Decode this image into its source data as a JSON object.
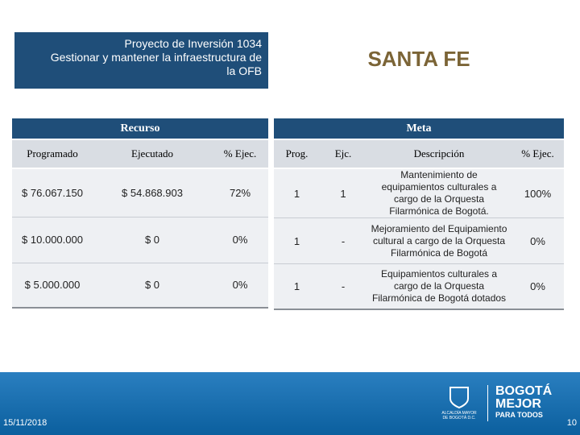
{
  "header": {
    "project_lines": [
      "Proyecto de Inversión 1034",
      "Gestionar y mantener la infraestructura de",
      "la OFB"
    ],
    "title": "SANTA FE"
  },
  "recurso": {
    "title": "Recurso",
    "columns": [
      "Programado",
      "Ejecutado",
      "% Ejec."
    ],
    "rows": [
      [
        "$ 76.067.150",
        "$ 54.868.903",
        "72%"
      ],
      [
        "$ 10.000.000",
        "$ 0",
        "0%"
      ],
      [
        "$ 5.000.000",
        "$ 0",
        "0%"
      ]
    ]
  },
  "meta": {
    "title": "Meta",
    "columns": [
      "Prog.",
      "Ejc.",
      "Descripción",
      "% Ejec."
    ],
    "rows": [
      [
        "1",
        "1",
        "Mantenimiento de equipamientos culturales a cargo de la Orquesta Filarmónica de Bogotá.",
        "100%"
      ],
      [
        "1",
        "-",
        "Mejoramiento del Equipamiento cultural a cargo de la Orquesta Filarmónica de Bogotá",
        "0%"
      ],
      [
        "1",
        "-",
        "Equipamientos culturales a cargo de la Orquesta Filarmónica de Bogotá dotados",
        "0%"
      ]
    ]
  },
  "footer": {
    "date": "15/11/2018",
    "page": "10",
    "crest_text": "ALCALDÍA MAYOR DE BOGOTÁ D.C.",
    "logo_lines": [
      "BOGOTÁ",
      "MEJOR",
      "PARA TODOS"
    ]
  }
}
